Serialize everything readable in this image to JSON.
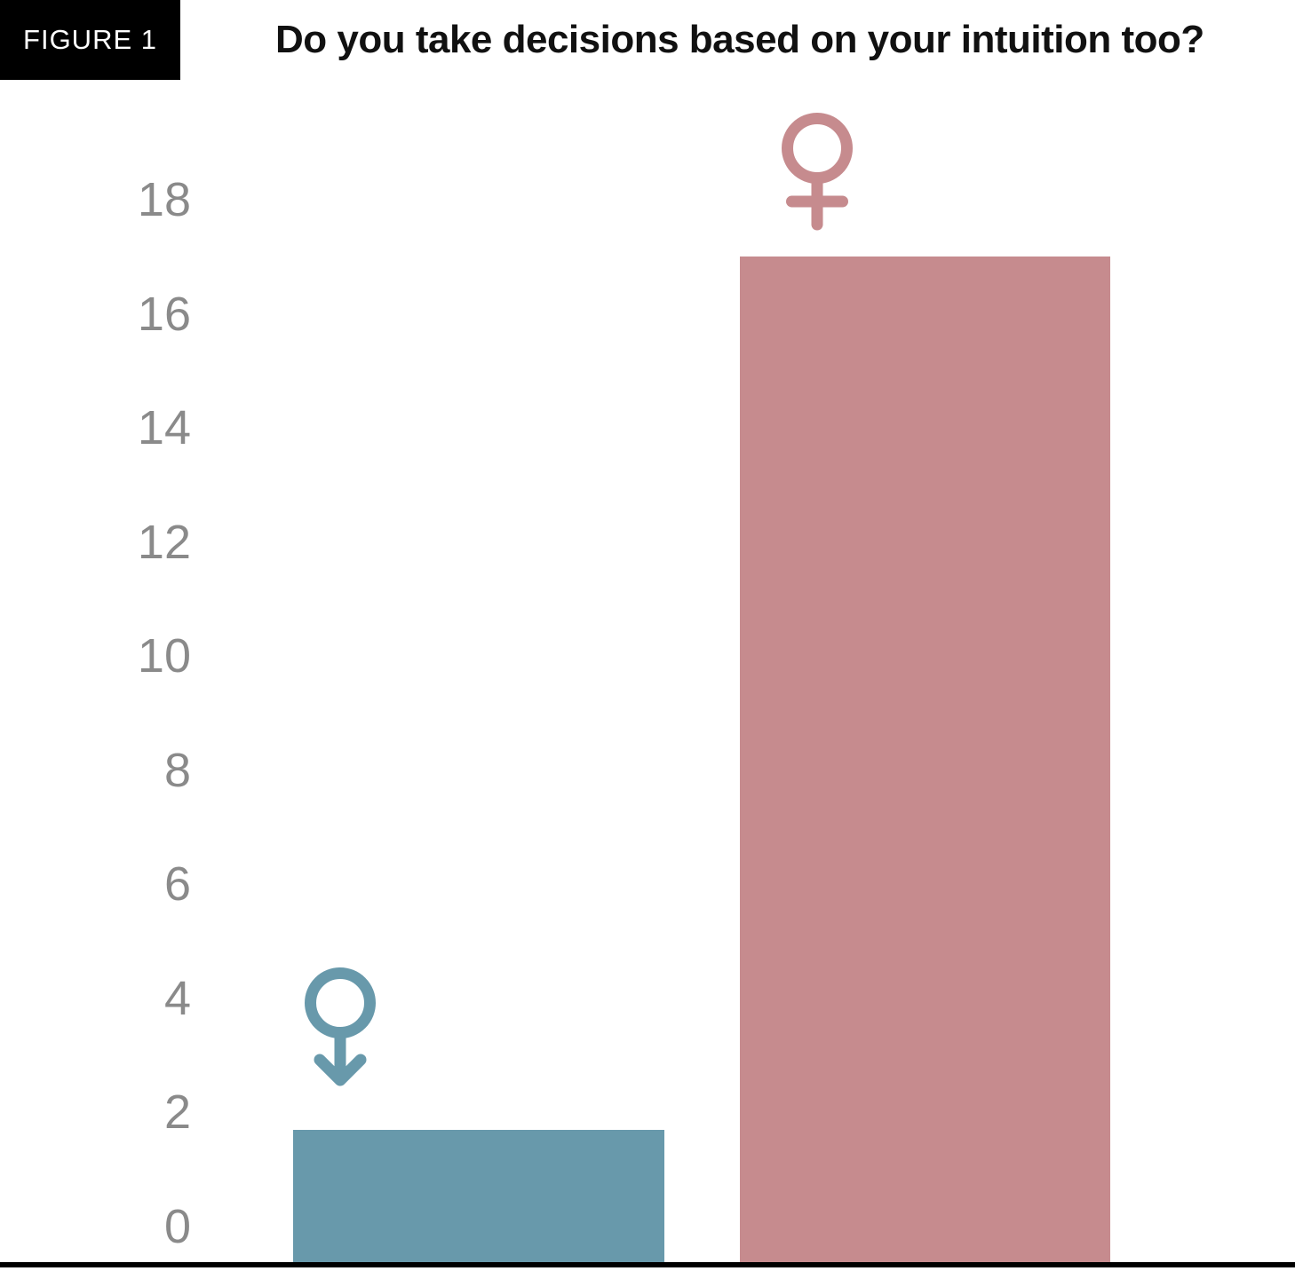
{
  "header": {
    "figure_label": "FIGURE 1",
    "title": "Do you take decisions based on your intuition too?"
  },
  "chart_data": {
    "type": "bar",
    "title": "Do you take decisions based on your intuition too?",
    "categories": [
      "Men",
      "Women"
    ],
    "values": [
      1.7,
      17
    ],
    "colors": [
      "#6899ab",
      "#c68b8e"
    ],
    "icons": [
      "male-icon",
      "female-icon"
    ],
    "xlabel": "",
    "ylabel": "",
    "ylim": [
      0,
      18
    ],
    "yticks": [
      0,
      2,
      4,
      6,
      8,
      10,
      12,
      14,
      16,
      18
    ],
    "tick_color": "#8a8a8a",
    "axis_line_color": "#000000",
    "grid": false,
    "legend": "none",
    "value_labels": false,
    "notes": "Category labels shown as gender glyph icons above each bar, no text labels on x-axis"
  }
}
